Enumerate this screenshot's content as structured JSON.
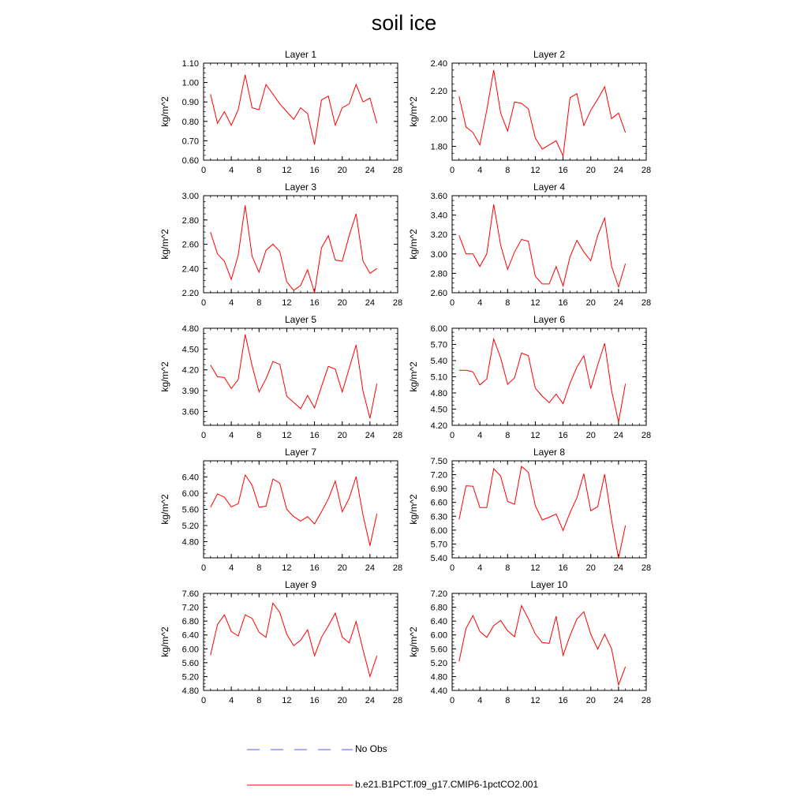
{
  "title": "soil ice",
  "legend": {
    "obs_label": "No Obs",
    "model_label": "b.e21.B1PCT.f09_g17.CMIP6-1pctCO2.001",
    "colors": {
      "obs": "#5a5aff",
      "model": "#ff0000"
    }
  },
  "chart_data": [
    {
      "type": "line",
      "title": "Layer 1",
      "ylabel": "kg/m^2",
      "xlim": [
        0,
        28
      ],
      "xticks": [
        "0",
        "4",
        "8",
        "12",
        "16",
        "20",
        "24",
        "28"
      ],
      "ylim": [
        0.6,
        1.1
      ],
      "yticks": [
        "0.60",
        "0.70",
        "0.80",
        "0.90",
        "1.00",
        "1.10"
      ],
      "x": [
        1,
        2,
        3,
        4,
        5,
        6,
        7,
        8,
        9,
        10,
        11,
        12,
        13,
        14,
        15,
        16,
        17,
        18,
        19,
        20,
        21,
        22,
        23,
        24,
        25
      ],
      "series": [
        {
          "values": [
            0.94,
            0.79,
            0.85,
            0.78,
            0.86,
            1.04,
            0.87,
            0.86,
            0.99,
            0.94,
            0.89,
            0.85,
            0.81,
            0.87,
            0.84,
            0.68,
            0.91,
            0.93,
            0.78,
            0.87,
            0.89,
            0.99,
            0.9,
            0.92,
            0.79
          ]
        }
      ]
    },
    {
      "type": "line",
      "title": "Layer 2",
      "ylabel": "kg/m^2",
      "xlim": [
        0,
        28
      ],
      "xticks": [
        "0",
        "4",
        "8",
        "12",
        "16",
        "20",
        "24",
        "28"
      ],
      "ylim": [
        1.7,
        2.4
      ],
      "yticks": [
        "1.80",
        "2.00",
        "2.20",
        "2.40"
      ],
      "x": [
        1,
        2,
        3,
        4,
        5,
        6,
        7,
        8,
        9,
        10,
        11,
        12,
        13,
        14,
        15,
        16,
        17,
        18,
        19,
        20,
        21,
        22,
        23,
        24,
        25
      ],
      "series": [
        {
          "values": [
            2.16,
            1.94,
            1.9,
            1.81,
            2.06,
            2.35,
            2.04,
            1.91,
            2.12,
            2.11,
            2.07,
            1.86,
            1.78,
            1.81,
            1.84,
            1.73,
            2.15,
            2.18,
            1.95,
            2.06,
            2.14,
            2.23,
            2.0,
            2.04,
            1.9
          ]
        }
      ]
    },
    {
      "type": "line",
      "title": "Layer 3",
      "ylabel": "kg/m^2",
      "xlim": [
        0,
        28
      ],
      "xticks": [
        "0",
        "4",
        "8",
        "12",
        "16",
        "20",
        "24",
        "28"
      ],
      "ylim": [
        2.2,
        3.0
      ],
      "yticks": [
        "2.20",
        "2.40",
        "2.60",
        "2.80",
        "3.00"
      ],
      "x": [
        1,
        2,
        3,
        4,
        5,
        6,
        7,
        8,
        9,
        10,
        11,
        12,
        13,
        14,
        15,
        16,
        17,
        18,
        19,
        20,
        21,
        22,
        23,
        24,
        25
      ],
      "series": [
        {
          "values": [
            2.7,
            2.52,
            2.46,
            2.31,
            2.51,
            2.92,
            2.5,
            2.37,
            2.55,
            2.6,
            2.54,
            2.29,
            2.22,
            2.26,
            2.39,
            2.2,
            2.57,
            2.67,
            2.47,
            2.46,
            2.67,
            2.85,
            2.46,
            2.36,
            2.4
          ]
        }
      ]
    },
    {
      "type": "line",
      "title": "Layer 4",
      "ylabel": "kg/m^2",
      "xlim": [
        0,
        28
      ],
      "xticks": [
        "0",
        "4",
        "8",
        "12",
        "16",
        "20",
        "24",
        "28"
      ],
      "ylim": [
        2.6,
        3.6
      ],
      "yticks": [
        "2.60",
        "2.80",
        "3.00",
        "3.20",
        "3.40",
        "3.60"
      ],
      "x": [
        1,
        2,
        3,
        4,
        5,
        6,
        7,
        8,
        9,
        10,
        11,
        12,
        13,
        14,
        15,
        16,
        17,
        18,
        19,
        20,
        21,
        22,
        23,
        24,
        25
      ],
      "series": [
        {
          "values": [
            3.19,
            3.0,
            3.0,
            2.87,
            3.0,
            3.51,
            3.09,
            2.84,
            3.02,
            3.15,
            3.13,
            2.77,
            2.69,
            2.69,
            2.87,
            2.67,
            2.97,
            3.14,
            3.02,
            2.93,
            3.19,
            3.37,
            2.87,
            2.66,
            2.9
          ]
        }
      ]
    },
    {
      "type": "line",
      "title": "Layer 5",
      "ylabel": "kg/m^2",
      "xlim": [
        0,
        28
      ],
      "xticks": [
        "0",
        "4",
        "8",
        "12",
        "16",
        "20",
        "24",
        "28"
      ],
      "ylim": [
        3.4,
        4.8
      ],
      "yticks": [
        "3.60",
        "3.90",
        "4.20",
        "4.50",
        "4.80"
      ],
      "x": [
        1,
        2,
        3,
        4,
        5,
        6,
        7,
        8,
        9,
        10,
        11,
        12,
        13,
        14,
        15,
        16,
        17,
        18,
        19,
        20,
        21,
        22,
        23,
        24,
        25
      ],
      "series": [
        {
          "values": [
            4.27,
            4.1,
            4.09,
            3.93,
            4.06,
            4.71,
            4.26,
            3.88,
            4.07,
            4.32,
            4.28,
            3.82,
            3.73,
            3.64,
            3.83,
            3.65,
            3.96,
            4.25,
            4.21,
            3.88,
            4.22,
            4.56,
            3.89,
            3.5,
            4.0
          ]
        }
      ]
    },
    {
      "type": "line",
      "title": "Layer 6",
      "ylabel": "kg/m^2",
      "xlim": [
        0,
        28
      ],
      "xticks": [
        "0",
        "4",
        "8",
        "12",
        "16",
        "20",
        "24",
        "28"
      ],
      "ylim": [
        4.2,
        6.0
      ],
      "yticks": [
        "4.20",
        "4.50",
        "4.80",
        "5.10",
        "5.40",
        "5.70",
        "6.00"
      ],
      "x": [
        1,
        2,
        3,
        4,
        5,
        6,
        7,
        8,
        9,
        10,
        11,
        12,
        13,
        14,
        15,
        16,
        17,
        18,
        19,
        20,
        21,
        22,
        23,
        24,
        25
      ],
      "series": [
        {
          "values": [
            5.22,
            5.22,
            5.19,
            4.95,
            5.06,
            5.8,
            5.45,
            4.96,
            5.08,
            5.54,
            5.49,
            4.89,
            4.74,
            4.62,
            4.78,
            4.6,
            4.98,
            5.28,
            5.49,
            4.88,
            5.32,
            5.72,
            4.84,
            4.26,
            4.97
          ]
        }
      ]
    },
    {
      "type": "line",
      "title": "Layer 7",
      "ylabel": "kg/m^2",
      "xlim": [
        0,
        28
      ],
      "xticks": [
        "0",
        "4",
        "8",
        "12",
        "16",
        "20",
        "24",
        "28"
      ],
      "ylim": [
        4.4,
        6.8
      ],
      "yticks": [
        "4.80",
        "5.20",
        "5.60",
        "6.00",
        "6.40"
      ],
      "x": [
        1,
        2,
        3,
        4,
        5,
        6,
        7,
        8,
        9,
        10,
        11,
        12,
        13,
        14,
        15,
        16,
        17,
        18,
        19,
        20,
        21,
        22,
        23,
        24,
        25
      ],
      "series": [
        {
          "values": [
            5.65,
            5.98,
            5.9,
            5.66,
            5.74,
            6.45,
            6.2,
            5.65,
            5.68,
            6.35,
            6.25,
            5.6,
            5.42,
            5.31,
            5.42,
            5.24,
            5.54,
            5.86,
            6.3,
            5.54,
            5.87,
            6.41,
            5.45,
            4.7,
            5.49
          ]
        }
      ]
    },
    {
      "type": "line",
      "title": "Layer 8",
      "ylabel": "kg/m^2",
      "xlim": [
        0,
        28
      ],
      "xticks": [
        "0",
        "4",
        "8",
        "12",
        "16",
        "20",
        "24",
        "28"
      ],
      "ylim": [
        5.4,
        7.5
      ],
      "yticks": [
        "5.40",
        "5.70",
        "6.00",
        "6.30",
        "6.60",
        "6.90",
        "7.20",
        "7.50"
      ],
      "x": [
        1,
        2,
        3,
        4,
        5,
        6,
        7,
        8,
        9,
        10,
        11,
        12,
        13,
        14,
        15,
        16,
        17,
        18,
        19,
        20,
        21,
        22,
        23,
        24,
        25
      ],
      "series": [
        {
          "values": [
            6.23,
            6.96,
            6.95,
            6.49,
            6.49,
            7.33,
            7.17,
            6.62,
            6.56,
            7.38,
            7.25,
            6.53,
            6.22,
            6.28,
            6.35,
            5.99,
            6.38,
            6.7,
            7.22,
            6.42,
            6.51,
            7.21,
            6.22,
            5.39,
            6.1
          ]
        }
      ]
    },
    {
      "type": "line",
      "title": "Layer 9",
      "ylabel": "kg/m^2",
      "xlim": [
        0,
        28
      ],
      "xticks": [
        "0",
        "4",
        "8",
        "12",
        "16",
        "20",
        "24",
        "28"
      ],
      "ylim": [
        4.8,
        7.6
      ],
      "yticks": [
        "4.80",
        "5.20",
        "5.60",
        "6.00",
        "6.40",
        "6.80",
        "7.20",
        "7.60"
      ],
      "x": [
        1,
        2,
        3,
        4,
        5,
        6,
        7,
        8,
        9,
        10,
        11,
        12,
        13,
        14,
        15,
        16,
        17,
        18,
        19,
        20,
        21,
        22,
        23,
        24,
        25
      ],
      "series": [
        {
          "values": [
            5.82,
            6.7,
            6.98,
            6.5,
            6.37,
            6.98,
            6.88,
            6.48,
            6.33,
            7.32,
            7.05,
            6.42,
            6.09,
            6.25,
            6.55,
            5.8,
            6.33,
            6.66,
            7.03,
            6.34,
            6.17,
            6.79,
            5.97,
            5.2,
            5.8
          ]
        }
      ]
    },
    {
      "type": "line",
      "title": "Layer 10",
      "ylabel": "kg/m^2",
      "xlim": [
        0,
        28
      ],
      "xticks": [
        "0",
        "4",
        "8",
        "12",
        "16",
        "20",
        "24",
        "28"
      ],
      "ylim": [
        4.4,
        7.2
      ],
      "yticks": [
        "4.40",
        "4.80",
        "5.20",
        "5.60",
        "6.00",
        "6.40",
        "6.80",
        "7.20"
      ],
      "x": [
        1,
        2,
        3,
        4,
        5,
        6,
        7,
        8,
        9,
        10,
        11,
        12,
        13,
        14,
        15,
        16,
        17,
        18,
        19,
        20,
        21,
        22,
        23,
        24,
        25
      ],
      "series": [
        {
          "values": [
            5.24,
            6.19,
            6.56,
            6.1,
            5.93,
            6.27,
            6.42,
            6.12,
            5.95,
            6.85,
            6.47,
            6.03,
            5.78,
            5.76,
            6.54,
            5.41,
            5.98,
            6.46,
            6.67,
            6.02,
            5.59,
            6.02,
            5.6,
            4.56,
            5.08
          ]
        }
      ]
    }
  ]
}
